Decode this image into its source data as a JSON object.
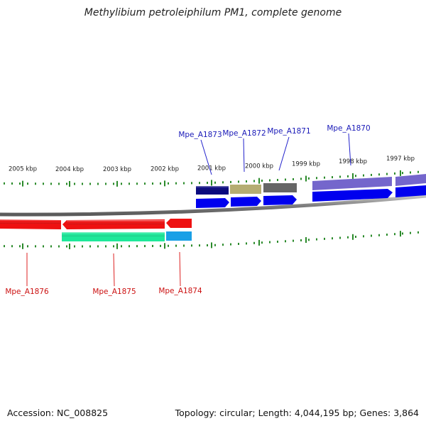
{
  "title": "Methylibium petroleiphilum PM1, complete genome",
  "accession_text": "Accession: NC_008825",
  "summary_text": "Topology: circular; Length: 4,044,195 bp; Genes: 3,864",
  "scale": {
    "unit": "kbp",
    "labels": [
      {
        "kbp": 2005,
        "text": "2005 kbp"
      },
      {
        "kbp": 2004,
        "text": "2004 kbp"
      },
      {
        "kbp": 2003,
        "text": "2003 kbp"
      },
      {
        "kbp": 2002,
        "text": "2002 kbp"
      },
      {
        "kbp": 2001,
        "text": "2001 kbp"
      },
      {
        "kbp": 2000,
        "text": "2000 kbp"
      },
      {
        "kbp": 1999,
        "text": "1999 kbp"
      },
      {
        "kbp": 1998,
        "text": "1998 kbp"
      },
      {
        "kbp": 1997,
        "text": "1997 kbp"
      }
    ]
  },
  "genes_forward": [
    {
      "name": "Mpe_A1873",
      "color": "#0000ee",
      "label_color": "#1a1ab8"
    },
    {
      "name": "Mpe_A1872",
      "color": "#0000ee",
      "label_color": "#1a1ab8"
    },
    {
      "name": "Mpe_A1871",
      "color": "#0000ee",
      "label_color": "#1a1ab8"
    },
    {
      "name": "Mpe_A1870",
      "color": "#0000ee",
      "label_color": "#1a1ab8"
    }
  ],
  "genes_reverse": [
    {
      "name": "Mpe_A1876",
      "color": "#ee1111",
      "label_color": "#cc1111"
    },
    {
      "name": "Mpe_A1875",
      "color": "#ee1111",
      "label_color": "#cc1111"
    },
    {
      "name": "Mpe_A1874",
      "color": "#ee1111",
      "label_color": "#cc1111"
    }
  ],
  "cog_forward_colors": [
    "#0a0a80",
    "#b5ad72",
    "#666666",
    "#7466cc",
    "#7466cc"
  ],
  "cog_reverse_colors": [
    "#1ee89a",
    "#1aa0e6"
  ],
  "colors": {
    "backbone": "#808080",
    "tick": "#2a8a2a",
    "text": "#222222"
  }
}
